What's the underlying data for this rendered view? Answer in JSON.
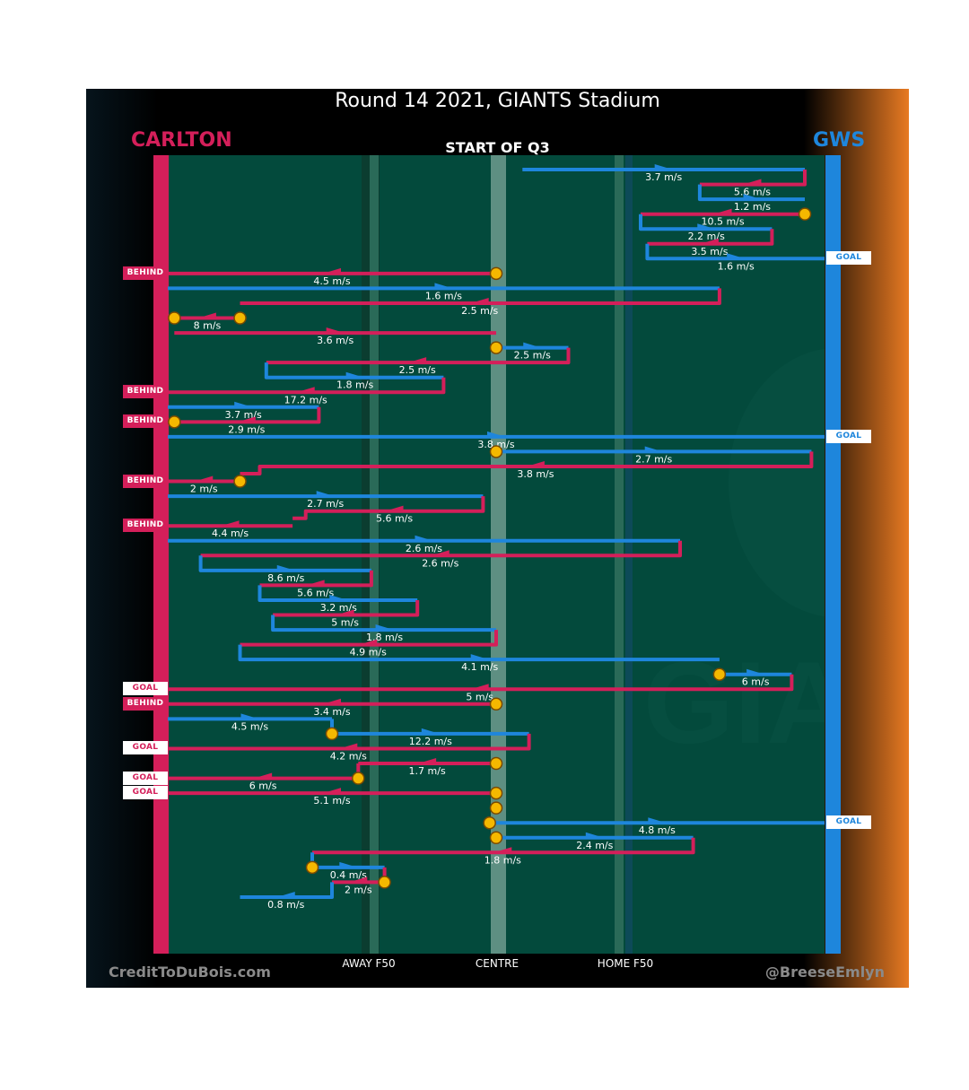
{
  "title": "Round 14 2021, GIANTS Stadium",
  "quarter_label": "START OF Q3",
  "teams": {
    "left": "CARLTON",
    "right": "GWS"
  },
  "colors": {
    "carlton": "#d41f5a",
    "gws": "#1e86dc",
    "field": "#034a3c",
    "ball": "#f5b800"
  },
  "axis_labels": {
    "away_f50": "AWAY F50",
    "centre": "CENTRE",
    "home_f50": "HOME F50"
  },
  "credits": {
    "left": "CreditToDuBois.com",
    "right": "@BreeseEmlyn"
  },
  "chart_data": {
    "type": "line",
    "description_units": "x: 0 = Carlton end, 100 = GWS end",
    "chains": [
      {
        "team": "gws",
        "segs": [
          [
            54,
            97
          ]
        ],
        "speed": "3.7 m/s"
      },
      {
        "team": "carlton",
        "segs": [
          [
            97,
            81
          ]
        ],
        "speed": "5.6 m/s",
        "start_jump": true
      },
      {
        "team": "gws",
        "segs": [
          [
            81,
            97
          ]
        ],
        "speed": "1.2 m/s",
        "start_jump": true
      },
      {
        "team": "carlton",
        "segs": [
          [
            97,
            72
          ]
        ],
        "speed": "10.5 m/s",
        "ball_start": true
      },
      {
        "team": "gws",
        "segs": [
          [
            72,
            92
          ]
        ],
        "speed": "2.2 m/s",
        "start_jump": true
      },
      {
        "team": "carlton",
        "segs": [
          [
            92,
            73
          ]
        ],
        "speed": "3.5 m/s",
        "start_jump": true
      },
      {
        "team": "gws",
        "segs": [
          [
            73,
            100
          ]
        ],
        "speed": "1.6 m/s",
        "start_jump": true,
        "outcome": "GOAL"
      },
      {
        "team": "carlton",
        "segs": [
          [
            50,
            0
          ]
        ],
        "speed": "4.5 m/s",
        "ball_start": true,
        "outcome": "BEHIND"
      },
      {
        "team": "gws",
        "segs": [
          [
            0,
            84
          ]
        ],
        "speed": "1.6 m/s"
      },
      {
        "team": "carlton",
        "segs": [
          [
            84,
            11
          ]
        ],
        "speed": "2.5 m/s",
        "start_jump": true
      },
      {
        "team": "carlton",
        "segs": [
          [
            11,
            1
          ]
        ],
        "speed": "8 m/s",
        "ball_start": true,
        "ball_end": true
      },
      {
        "team": "carlton",
        "segs": [
          [
            1,
            50
          ]
        ],
        "speed": "3.6 m/s"
      },
      {
        "team": "gws",
        "segs": [
          [
            50,
            61
          ]
        ],
        "speed": "2.5 m/s",
        "ball_start": true
      },
      {
        "team": "carlton",
        "segs": [
          [
            61,
            15
          ]
        ],
        "speed": "2.5 m/s",
        "start_jump": true
      },
      {
        "team": "gws",
        "segs": [
          [
            15,
            42
          ]
        ],
        "speed": "1.8 m/s",
        "start_jump": true
      },
      {
        "team": "carlton",
        "segs": [
          [
            42,
            0
          ]
        ],
        "speed": "17.2 m/s",
        "start_jump": true,
        "outcome": "BEHIND"
      },
      {
        "team": "gws",
        "segs": [
          [
            0,
            23
          ]
        ],
        "speed": "3.7 m/s"
      },
      {
        "team": "carlton",
        "segs": [
          [
            23,
            1
          ]
        ],
        "speed": "2.9 m/s",
        "start_jump": true,
        "ball_end": true,
        "outcome": "BEHIND"
      },
      {
        "team": "gws",
        "segs": [
          [
            0,
            100
          ]
        ],
        "speed": "3.8 m/s",
        "outcome": "GOAL"
      },
      {
        "team": "gws",
        "segs": [
          [
            50,
            98
          ]
        ],
        "speed": "2.7 m/s",
        "ball_start": true
      },
      {
        "team": "carlton",
        "segs": [
          [
            98,
            14
          ],
          [
            14,
            11
          ]
        ],
        "speed": "3.8 m/s",
        "start_jump": true
      },
      {
        "team": "carlton",
        "segs": [
          [
            11,
            0
          ]
        ],
        "speed": "2 m/s",
        "ball_start": true,
        "outcome": "BEHIND"
      },
      {
        "team": "gws",
        "segs": [
          [
            0,
            48
          ]
        ],
        "speed": "2.7 m/s"
      },
      {
        "team": "carlton",
        "segs": [
          [
            48,
            21
          ],
          [
            21,
            19
          ]
        ],
        "speed": "5.6 m/s",
        "start_jump": true
      },
      {
        "team": "carlton",
        "segs": [
          [
            19,
            0
          ]
        ],
        "speed": "4.4 m/s",
        "outcome": "BEHIND"
      },
      {
        "team": "gws",
        "segs": [
          [
            0,
            78
          ]
        ],
        "speed": "2.6 m/s"
      },
      {
        "team": "carlton",
        "segs": [
          [
            78,
            5
          ]
        ],
        "speed": "2.6 m/s",
        "start_jump": true
      },
      {
        "team": "gws",
        "segs": [
          [
            5,
            31
          ]
        ],
        "speed": "8.6 m/s",
        "start_jump": true
      },
      {
        "team": "carlton",
        "segs": [
          [
            31,
            14
          ]
        ],
        "speed": "5.6 m/s",
        "start_jump": true
      },
      {
        "team": "gws",
        "segs": [
          [
            14,
            38
          ]
        ],
        "speed": "3.2 m/s",
        "start_jump": true
      },
      {
        "team": "carlton",
        "segs": [
          [
            38,
            16
          ]
        ],
        "speed": "5 m/s",
        "start_jump": true
      },
      {
        "team": "gws",
        "segs": [
          [
            16,
            50
          ]
        ],
        "speed": "1.8 m/s",
        "start_jump": true
      },
      {
        "team": "carlton",
        "segs": [
          [
            50,
            11
          ]
        ],
        "speed": "4.9 m/s",
        "start_jump": true
      },
      {
        "team": "gws",
        "segs": [
          [
            11,
            84
          ]
        ],
        "speed": "4.1 m/s",
        "start_jump": true
      },
      {
        "team": "gws",
        "segs": [
          [
            84,
            95
          ]
        ],
        "speed": "6 m/s",
        "ball_start": true
      },
      {
        "team": "carlton",
        "segs": [
          [
            95,
            0
          ]
        ],
        "speed": "5 m/s",
        "start_jump": true,
        "outcome": "GOAL"
      },
      {
        "team": "carlton",
        "segs": [
          [
            50,
            0
          ]
        ],
        "speed": "3.4 m/s",
        "ball_start": true,
        "outcome": "BEHIND"
      },
      {
        "team": "gws",
        "segs": [
          [
            0,
            25
          ]
        ],
        "speed": "4.5 m/s"
      },
      {
        "team": "gws",
        "segs": [
          [
            25,
            55
          ]
        ],
        "speed": "12.2 m/s",
        "ball_start": true,
        "start_jump": true
      },
      {
        "team": "carlton",
        "segs": [
          [
            55,
            0
          ]
        ],
        "speed": "4.2 m/s",
        "start_jump": true,
        "outcome": "GOAL"
      },
      {
        "team": "carlton",
        "segs": [
          [
            50,
            29
          ]
        ],
        "speed": "1.7 m/s",
        "ball_start": true
      },
      {
        "team": "carlton",
        "segs": [
          [
            29,
            0
          ]
        ],
        "speed": "6 m/s",
        "ball_start": true,
        "start_jump": true,
        "outcome": "GOAL"
      },
      {
        "team": "carlton",
        "segs": [
          [
            50,
            0
          ]
        ],
        "speed": "5.1 m/s",
        "ball_start": true,
        "outcome": "GOAL"
      },
      {
        "team": "gws",
        "segs": [
          [
            50,
            50
          ]
        ],
        "speed": "",
        "ball_start": true
      },
      {
        "team": "gws",
        "segs": [
          [
            49,
            100
          ]
        ],
        "speed": "4.8 m/s",
        "ball_start": true,
        "outcome": "GOAL"
      },
      {
        "team": "gws",
        "segs": [
          [
            50,
            80
          ]
        ],
        "speed": "2.4 m/s",
        "ball_start": true
      },
      {
        "team": "carlton",
        "segs": [
          [
            80,
            22
          ]
        ],
        "speed": "1.8 m/s",
        "start_jump": true
      },
      {
        "team": "gws",
        "segs": [
          [
            22,
            33
          ]
        ],
        "speed": "0.4 m/s",
        "ball_start": true,
        "start_jump": true
      },
      {
        "team": "carlton",
        "segs": [
          [
            33,
            25
          ]
        ],
        "speed": "2 m/s",
        "ball_start": true,
        "start_jump": true
      },
      {
        "team": "gws",
        "segs": [
          [
            25,
            11
          ]
        ],
        "speed": "0.8 m/s",
        "start_jump": true
      }
    ]
  }
}
